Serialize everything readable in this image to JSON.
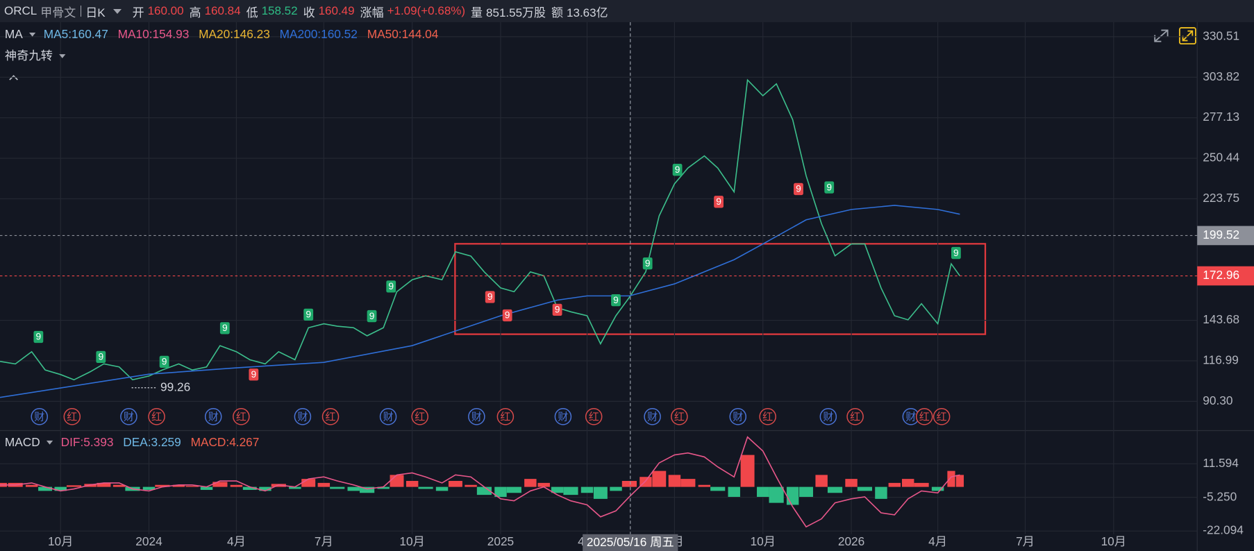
{
  "header": {
    "symbol": "ORCL",
    "name": "甲骨文",
    "period": "日K",
    "fields": [
      {
        "label": "开",
        "value": "160.00",
        "color": "#f0464a"
      },
      {
        "label": "高",
        "value": "160.84",
        "color": "#f0464a"
      },
      {
        "label": "低",
        "value": "158.52",
        "color": "#2ebd85"
      },
      {
        "label": "收",
        "value": "160.49",
        "color": "#f0464a"
      },
      {
        "label": "涨幅",
        "value": "+1.09(+0.68%)",
        "color": "#f0464a"
      },
      {
        "label": "量",
        "value": "851.55万股",
        "color": "#d1d4dc"
      },
      {
        "label": "额",
        "value": "13.63亿",
        "color": "#d1d4dc"
      }
    ]
  },
  "chart_data": [
    {
      "type": "line",
      "indicator": "MA",
      "overlay": "神奇九转",
      "legend": [
        {
          "text": "MA5:160.47",
          "color": "#6fb8e6"
        },
        {
          "text": "MA10:154.93",
          "color": "#e8578a"
        },
        {
          "text": "MA20:146.23",
          "color": "#e8b432"
        },
        {
          "text": "MA200:160.52",
          "color": "#2f6fd8"
        },
        {
          "text": "MA50:144.04",
          "color": "#f0604d"
        }
      ],
      "xlim": [
        "2023-07-30",
        "2026-12-27"
      ],
      "xticks": [
        {
          "value": "2023-10-01",
          "label": "10月"
        },
        {
          "value": "2024-01-01",
          "label": "2024"
        },
        {
          "value": "2024-04-01",
          "label": "4月"
        },
        {
          "value": "2024-07-01",
          "label": "7月"
        },
        {
          "value": "2024-10-01",
          "label": "10月"
        },
        {
          "value": "2025-01-01",
          "label": "2025"
        },
        {
          "value": "2025-04-01",
          "label": "4月"
        },
        {
          "value": "2025-07-01",
          "label": "7月"
        },
        {
          "value": "2025-10-01",
          "label": "10月"
        },
        {
          "value": "2026-01-01",
          "label": "2026"
        },
        {
          "value": "2026-04-01",
          "label": "4月"
        },
        {
          "value": "2026-07-01",
          "label": "7月"
        },
        {
          "value": "2026-10-01",
          "label": "10月"
        }
      ],
      "ylim": [
        71.3,
        339.0
      ],
      "yticks": [
        330.51,
        303.82,
        277.13,
        250.44,
        223.75,
        143.68,
        116.99,
        {
          "value": 90.3,
          "label": "90.30"
        }
      ],
      "grid": true,
      "x": [
        "2023-07-30",
        "2023-08-15",
        "2023-09-01",
        "2023-09-15",
        "2023-10-01",
        "2023-10-15",
        "2023-11-01",
        "2023-11-15",
        "2023-12-01",
        "2023-12-15",
        "2024-01-01",
        "2024-01-15",
        "2024-02-01",
        "2024-02-15",
        "2024-03-01",
        "2024-03-15",
        "2024-04-01",
        "2024-04-15",
        "2024-05-01",
        "2024-05-15",
        "2024-06-01",
        "2024-06-15",
        "2024-07-01",
        "2024-07-15",
        "2024-08-01",
        "2024-08-15",
        "2024-09-01",
        "2024-09-15",
        "2024-10-01",
        "2024-10-15",
        "2024-11-01",
        "2024-11-15",
        "2024-12-01",
        "2024-12-15",
        "2025-01-01",
        "2025-01-15",
        "2025-02-01",
        "2025-02-15",
        "2025-03-01",
        "2025-03-15",
        "2025-04-01",
        "2025-04-15",
        "2025-05-01",
        "2025-05-15",
        "2025-06-01",
        "2025-06-15",
        "2025-07-01",
        "2025-07-15",
        "2025-08-01",
        "2025-08-15",
        "2025-09-01",
        "2025-09-15",
        "2025-10-01",
        "2025-10-15",
        "2025-11-01",
        "2025-11-15",
        "2025-12-01",
        "2025-12-15",
        "2026-01-01",
        "2026-01-15",
        "2026-02-01",
        "2026-02-15",
        "2026-03-01",
        "2026-03-15",
        "2026-04-01",
        "2026-04-15",
        "2026-04-24"
      ],
      "series": [
        {
          "color": "#3cbf8c",
          "values": [
            116.6,
            115,
            123,
            111,
            108,
            104.5,
            109.8,
            115,
            113,
            104.5,
            107,
            111,
            115,
            111,
            113,
            127,
            123,
            117.7,
            115,
            123,
            117.7,
            138.8,
            141.4,
            139.8,
            138.8,
            133.5,
            138.8,
            162.5,
            170.4,
            173,
            170.4,
            188.8,
            186,
            175.6,
            165,
            162.5,
            175.6,
            173,
            152,
            149.3,
            146.7,
            128.2,
            146.7,
            158.8,
            175.6,
            212.5,
            233.6,
            244,
            252,
            244,
            228.3,
            302,
            291.6,
            299.5,
            275.8,
            238.9,
            207.3,
            186.2,
            194,
            194,
            165,
            146.7,
            144,
            154.6,
            141.4,
            180.9,
            172.96
          ]
        },
        {
          "color": "#2f6fd8",
          "x": [
            "2023-07-30",
            "2024-01-01",
            "2024-04-01",
            "2024-07-01",
            "2024-10-01",
            "2025-01-01",
            "2025-03-01",
            "2025-04-01",
            "2025-05-15",
            "2025-07-01",
            "2025-09-01",
            "2025-10-01",
            "2025-11-15",
            "2026-01-01",
            "2026-02-15",
            "2026-04-01",
            "2026-04-24"
          ],
          "values": [
            92.9,
            108.2,
            112.4,
            116,
            127,
            146.7,
            157,
            159.8,
            159.8,
            167.7,
            183.6,
            194,
            209.9,
            216.7,
            219.4,
            216.7,
            213.6
          ]
        }
      ],
      "signals": [
        {
          "label": "9",
          "x": "2023-09-08",
          "y": 133,
          "color": "#1faa6b"
        },
        {
          "label": "9",
          "x": "2023-11-12",
          "y": 119.8,
          "color": "#1faa6b"
        },
        {
          "label": "9",
          "x": "2024-01-17",
          "y": 116.6,
          "color": "#1faa6b"
        },
        {
          "label": "9",
          "x": "2024-03-20",
          "y": 138.8,
          "color": "#1faa6b"
        },
        {
          "label": "9",
          "x": "2024-06-15",
          "y": 147.7,
          "color": "#1faa6b"
        },
        {
          "label": "9",
          "x": "2024-08-20",
          "y": 146.7,
          "color": "#1faa6b"
        },
        {
          "label": "9",
          "x": "2024-09-09",
          "y": 166.2,
          "color": "#1faa6b"
        },
        {
          "label": "9",
          "x": "2025-05-01",
          "y": 157.2,
          "color": "#1faa6b"
        },
        {
          "label": "9",
          "x": "2025-06-03",
          "y": 181.4,
          "color": "#1faa6b"
        },
        {
          "label": "9",
          "x": "2025-07-04",
          "y": 243.1,
          "color": "#1faa6b"
        },
        {
          "label": "9",
          "x": "2025-12-09",
          "y": 231.5,
          "color": "#1faa6b"
        },
        {
          "label": "9",
          "x": "2026-04-20",
          "y": 188.3,
          "color": "#1faa6b"
        },
        {
          "label": "9",
          "x": "2024-04-19",
          "y": 108.2,
          "color": "#e9474b"
        },
        {
          "label": "9",
          "x": "2024-12-21",
          "y": 159.3,
          "color": "#e9474b"
        },
        {
          "label": "9",
          "x": "2025-01-08",
          "y": 147.2,
          "color": "#e9474b"
        },
        {
          "label": "9",
          "x": "2025-03-01",
          "y": 150.9,
          "color": "#e9474b"
        },
        {
          "label": "9",
          "x": "2025-08-16",
          "y": 222,
          "color": "#e9474b"
        },
        {
          "label": "9",
          "x": "2025-11-07",
          "y": 230.4,
          "color": "#e9474b"
        }
      ],
      "events": [
        {
          "label": "财",
          "x": "2023-09-09",
          "color": "#4a73d6"
        },
        {
          "label": "红",
          "x": "2023-10-13",
          "color": "#d64a4a"
        },
        {
          "label": "财",
          "x": "2023-12-11",
          "color": "#4a73d6"
        },
        {
          "label": "红",
          "x": "2024-01-09",
          "color": "#d64a4a"
        },
        {
          "label": "财",
          "x": "2024-03-08",
          "color": "#4a73d6"
        },
        {
          "label": "红",
          "x": "2024-04-06",
          "color": "#d64a4a"
        },
        {
          "label": "财",
          "x": "2024-06-09",
          "color": "#4a73d6"
        },
        {
          "label": "红",
          "x": "2024-07-08",
          "color": "#d64a4a"
        },
        {
          "label": "财",
          "x": "2024-09-06",
          "color": "#4a73d6"
        },
        {
          "label": "红",
          "x": "2024-10-09",
          "color": "#d64a4a"
        },
        {
          "label": "财",
          "x": "2024-12-07",
          "color": "#4a73d6"
        },
        {
          "label": "红",
          "x": "2025-01-06",
          "color": "#d64a4a"
        },
        {
          "label": "财",
          "x": "2025-03-07",
          "color": "#4a73d6"
        },
        {
          "label": "红",
          "x": "2025-04-08",
          "color": "#d64a4a"
        },
        {
          "label": "财",
          "x": "2025-06-08",
          "color": "#4a73d6"
        },
        {
          "label": "红",
          "x": "2025-07-06",
          "color": "#d64a4a"
        },
        {
          "label": "财",
          "x": "2025-09-05",
          "color": "#4a73d6"
        },
        {
          "label": "红",
          "x": "2025-10-06",
          "color": "#d64a4a"
        },
        {
          "label": "财",
          "x": "2025-12-08",
          "color": "#4a73d6"
        },
        {
          "label": "红",
          "x": "2026-01-05",
          "color": "#d64a4a"
        },
        {
          "label": "财",
          "x": "2026-03-04",
          "color": "#4a73d6"
        },
        {
          "label": "红",
          "x": "2026-03-18",
          "color": "#d64a4a"
        },
        {
          "label": "红",
          "x": "2026-04-05",
          "color": "#d64a4a"
        }
      ],
      "low_marker": {
        "value": 99.26,
        "x": "2023-12-14"
      },
      "price_lines": [
        {
          "value": 199.52,
          "color": "#8d9099"
        },
        {
          "value": 172.96,
          "color": "#f0464a"
        }
      ],
      "crosshair": {
        "x": "2025-05-16",
        "label": "2025/05/16 周五"
      }
    },
    {
      "type": "bar",
      "indicator": "MACD",
      "legend": [
        {
          "text": "DIF:5.393",
          "color": "#e8578a"
        },
        {
          "text": "DEA:3.259",
          "color": "#6fb8e6"
        },
        {
          "text": "MACD:4.267",
          "color": "#f0604d"
        }
      ],
      "ylim": [
        -23.7,
        27.6
      ],
      "yticks": [
        11.594,
        {
          "value": -5.25,
          "label": "-5.250"
        },
        -22.094
      ],
      "x": [
        "2023-07-30",
        "2023-08-15",
        "2023-09-01",
        "2023-09-15",
        "2023-10-01",
        "2023-10-15",
        "2023-11-01",
        "2023-11-15",
        "2023-12-01",
        "2023-12-15",
        "2024-01-01",
        "2024-01-15",
        "2024-02-01",
        "2024-02-15",
        "2024-03-01",
        "2024-03-15",
        "2024-04-01",
        "2024-04-15",
        "2024-05-01",
        "2024-05-15",
        "2024-06-01",
        "2024-06-15",
        "2024-07-01",
        "2024-07-15",
        "2024-08-01",
        "2024-08-15",
        "2024-09-01",
        "2024-09-15",
        "2024-10-01",
        "2024-10-15",
        "2024-11-01",
        "2024-11-15",
        "2024-12-01",
        "2024-12-15",
        "2025-01-01",
        "2025-01-15",
        "2025-02-01",
        "2025-02-15",
        "2025-03-01",
        "2025-03-15",
        "2025-04-01",
        "2025-04-15",
        "2025-05-01",
        "2025-05-15",
        "2025-06-01",
        "2025-06-15",
        "2025-07-01",
        "2025-07-15",
        "2025-08-01",
        "2025-08-15",
        "2025-09-01",
        "2025-09-15",
        "2025-10-01",
        "2025-10-15",
        "2025-11-01",
        "2025-11-15",
        "2025-12-01",
        "2025-12-15",
        "2026-01-01",
        "2026-01-15",
        "2026-02-01",
        "2026-02-15",
        "2026-03-01",
        "2026-03-15",
        "2026-04-01",
        "2026-04-15",
        "2026-04-24"
      ],
      "series": [
        {
          "type": "bar",
          "color": "#f0464a",
          "negative_color": "#2ebd85",
          "values": [
            2,
            2,
            1,
            -2,
            -2,
            0.8,
            1.5,
            2,
            1,
            -2,
            -1.5,
            1,
            1,
            0.5,
            -1.5,
            2.5,
            1,
            -1.5,
            -2,
            1.5,
            -1,
            4,
            2,
            -1,
            -2,
            -3,
            -1,
            6,
            3,
            -1,
            -2,
            3,
            1,
            -4,
            -5,
            -3,
            4,
            2,
            -3,
            -4,
            -3,
            -6,
            -2,
            3,
            5,
            8,
            6,
            4,
            1,
            -2,
            -5,
            16,
            -5,
            -8,
            -9,
            -5,
            6,
            -3,
            4,
            -2,
            -6,
            2,
            4,
            2,
            -2,
            8,
            6
          ]
        },
        {
          "type": "line",
          "color": "#e8578a",
          "values": [
            1,
            1,
            2,
            0,
            -2,
            -1,
            1,
            2,
            2,
            -1,
            -2,
            0,
            1,
            1,
            0,
            3,
            3,
            0,
            -2,
            1,
            0,
            4,
            5,
            3,
            1,
            -1,
            0,
            6,
            7,
            5,
            2,
            6,
            5,
            0,
            -6,
            -7,
            -2,
            0,
            -4,
            -7,
            -9,
            -15,
            -12,
            -5,
            3,
            12,
            16,
            17,
            15,
            10,
            5,
            25,
            18,
            5,
            -10,
            -20,
            -16,
            -8,
            -6,
            -5,
            -13,
            -14,
            -6,
            -2,
            -3,
            5,
            6
          ]
        }
      ]
    }
  ]
}
